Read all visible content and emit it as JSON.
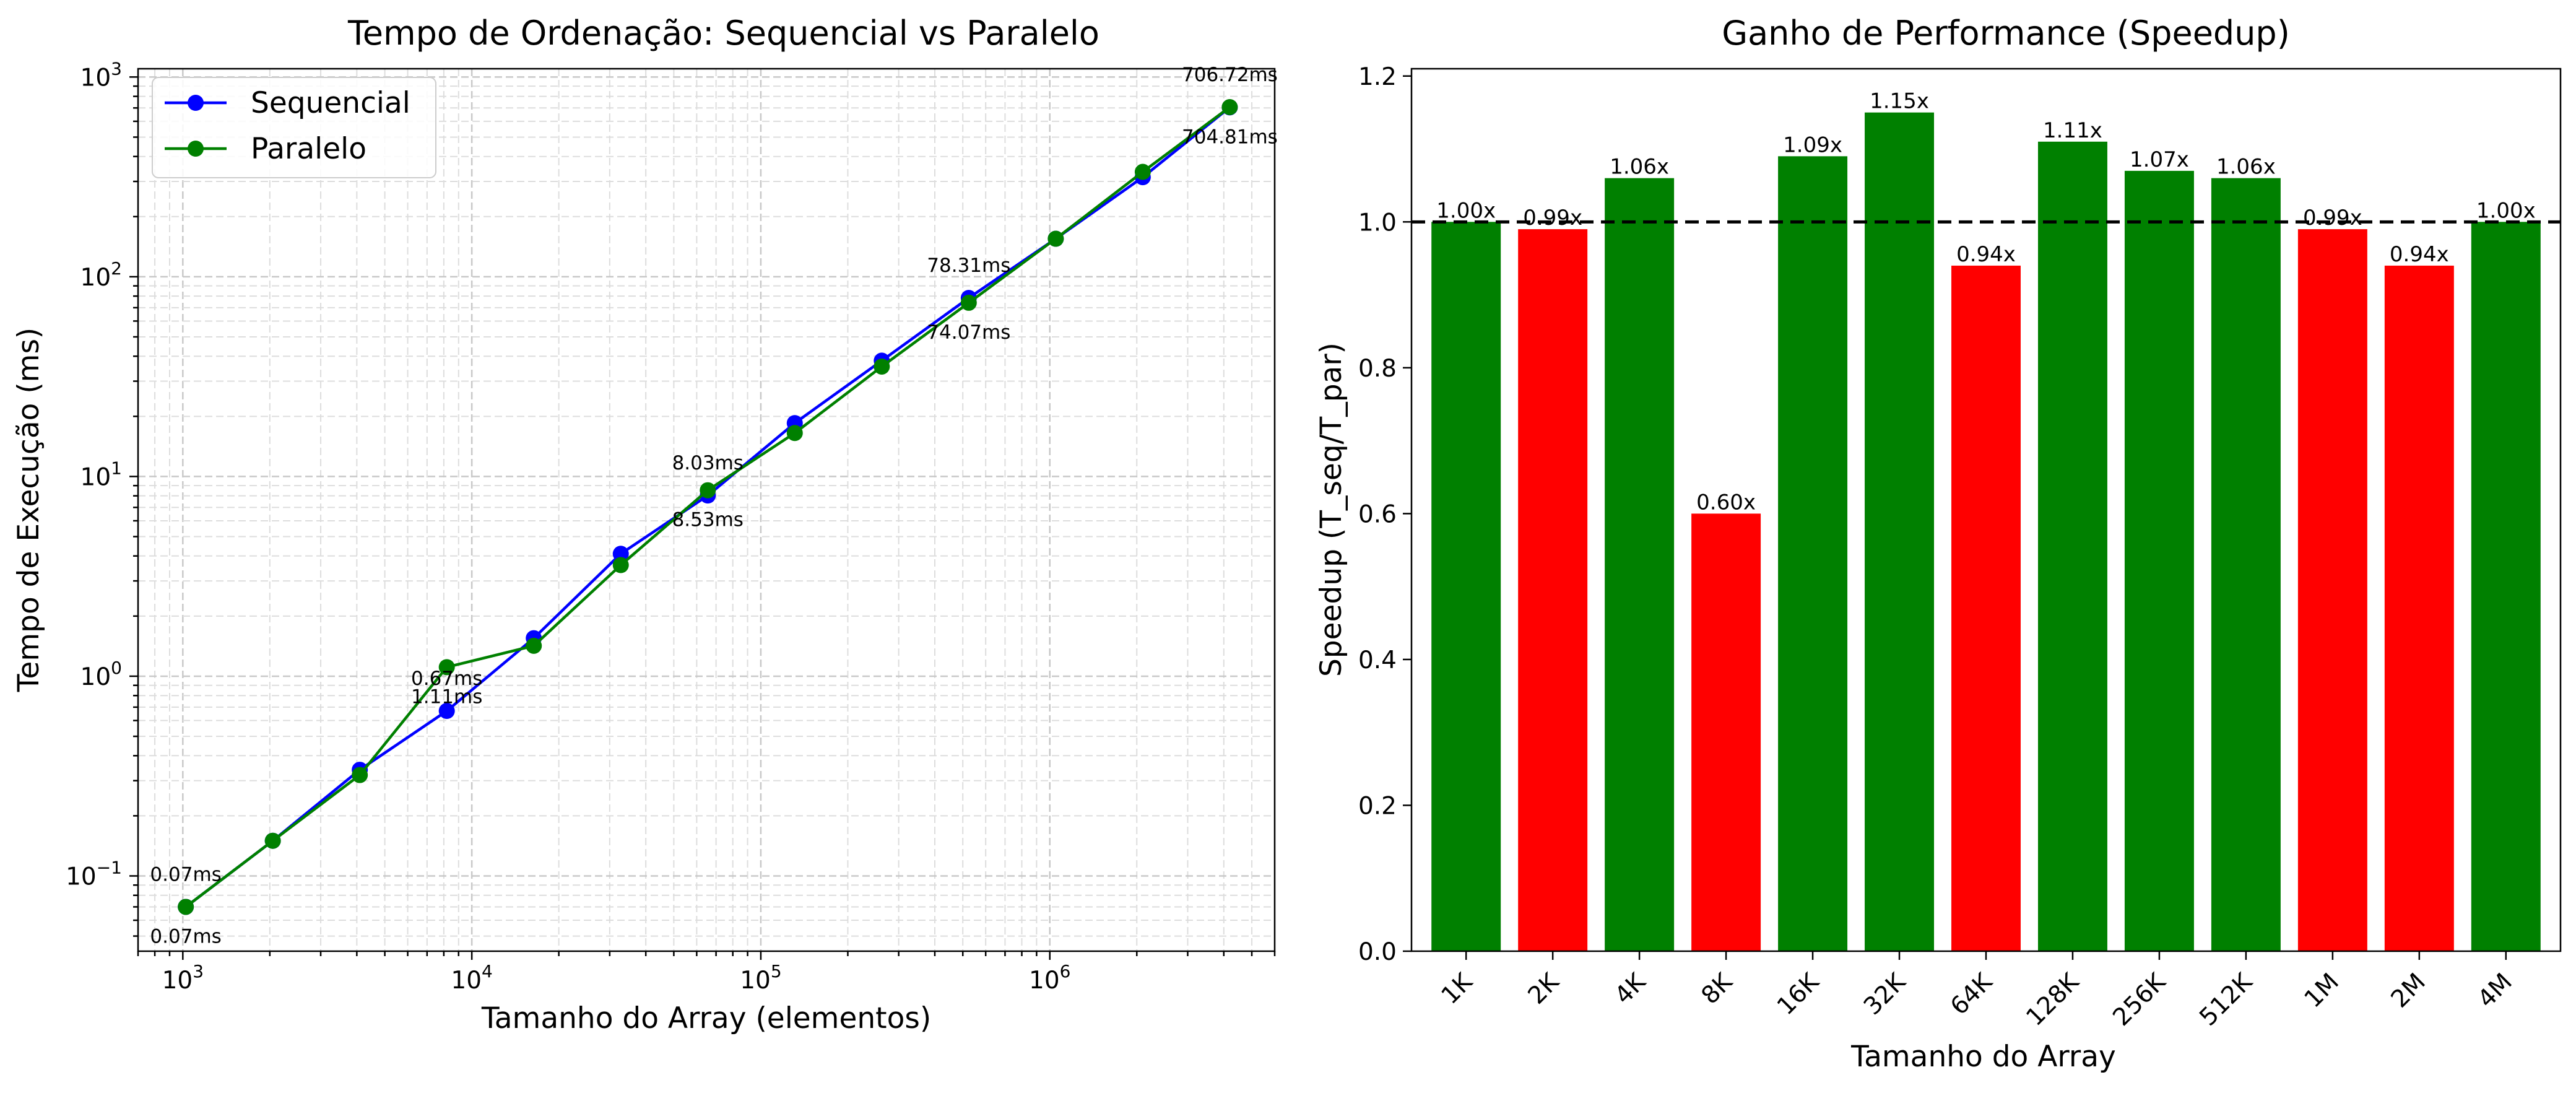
{
  "colors": {
    "sequential": "#0000ff",
    "parallel": "#008000",
    "speedup_good": "#008000",
    "speedup_bad": "#ff0000",
    "grid": "#d3d3d3",
    "baseline": "#000000"
  },
  "chart_data": [
    {
      "type": "line",
      "title": "Tempo de Ordenação: Sequencial vs Paralelo",
      "xlabel": "Tamanho do Array (elementos)",
      "ylabel": "Tempo de Execução (ms)",
      "xscale": "log",
      "yscale": "log",
      "xlim": [
        700,
        6000000
      ],
      "ylim": [
        0.042,
        1100
      ],
      "x_ticks": [
        {
          "value": 1000,
          "base": "10",
          "exp": "3"
        },
        {
          "value": 10000,
          "base": "10",
          "exp": "4"
        },
        {
          "value": 100000,
          "base": "10",
          "exp": "5"
        },
        {
          "value": 1000000,
          "base": "10",
          "exp": "6"
        }
      ],
      "y_ticks": [
        {
          "value": 0.1,
          "base": "10",
          "exp": "−1"
        },
        {
          "value": 1,
          "base": "10",
          "exp": "0"
        },
        {
          "value": 10,
          "base": "10",
          "exp": "1"
        },
        {
          "value": 100,
          "base": "10",
          "exp": "2"
        },
        {
          "value": 1000,
          "base": "10",
          "exp": "3"
        }
      ],
      "grid": true,
      "legend": "top-left",
      "x": [
        1024,
        2048,
        4096,
        8192,
        16384,
        32768,
        65536,
        131072,
        262144,
        524288,
        1048576,
        2097152,
        4194304
      ],
      "series": [
        {
          "name": "Sequencial",
          "color": "#0000ff",
          "values": [
            0.07,
            0.15,
            0.34,
            0.67,
            1.55,
            4.1,
            8.03,
            18.5,
            38.0,
            78.31,
            155.0,
            315.0,
            704.81
          ]
        },
        {
          "name": "Paralelo",
          "color": "#008000",
          "values": [
            0.07,
            0.15,
            0.32,
            1.11,
            1.42,
            3.6,
            8.53,
            16.5,
            35.5,
            74.07,
            155.0,
            335.0,
            706.72
          ]
        }
      ],
      "annotations": [
        {
          "text": "0.07ms",
          "x": 1024,
          "y": 0.07,
          "position": "above"
        },
        {
          "text": "0.07ms",
          "x": 1024,
          "y": 0.07,
          "position": "below"
        },
        {
          "text": "0.67ms",
          "x": 8192,
          "y": 0.67,
          "position": "above"
        },
        {
          "text": "1.11ms",
          "x": 8192,
          "y": 1.11,
          "position": "below"
        },
        {
          "text": "8.03ms",
          "x": 65536,
          "y": 8.03,
          "position": "above"
        },
        {
          "text": "8.53ms",
          "x": 65536,
          "y": 8.53,
          "position": "below"
        },
        {
          "text": "78.31ms",
          "x": 524288,
          "y": 78.31,
          "position": "above"
        },
        {
          "text": "74.07ms",
          "x": 524288,
          "y": 74.07,
          "position": "below"
        },
        {
          "text": "706.72ms",
          "x": 4194304,
          "y": 706.72,
          "position": "above"
        },
        {
          "text": "704.81ms",
          "x": 4194304,
          "y": 704.81,
          "position": "below"
        }
      ]
    },
    {
      "type": "bar",
      "title": "Ganho de Performance (Speedup)",
      "xlabel": "Tamanho do Array",
      "ylabel": "Speedup (T_seq/T_par)",
      "categories": [
        "1K",
        "2K",
        "4K",
        "8K",
        "16K",
        "32K",
        "64K",
        "128K",
        "256K",
        "512K",
        "1M",
        "2M",
        "4M"
      ],
      "values": [
        1.0,
        0.99,
        1.06,
        0.6,
        1.09,
        1.15,
        0.94,
        1.11,
        1.07,
        1.06,
        0.99,
        0.94,
        1.0
      ],
      "value_labels": [
        "1.00x",
        "0.99x",
        "1.06x",
        "0.60x",
        "1.09x",
        "1.15x",
        "0.94x",
        "1.11x",
        "1.07x",
        "1.06x",
        "0.99x",
        "0.94x",
        "1.00x"
      ],
      "ylim": [
        0,
        1.21
      ],
      "y_ticks": [
        "0.0",
        "0.2",
        "0.4",
        "0.6",
        "0.8",
        "1.0",
        "1.2"
      ],
      "baseline": 1.0,
      "tick_rotation": 45
    }
  ]
}
